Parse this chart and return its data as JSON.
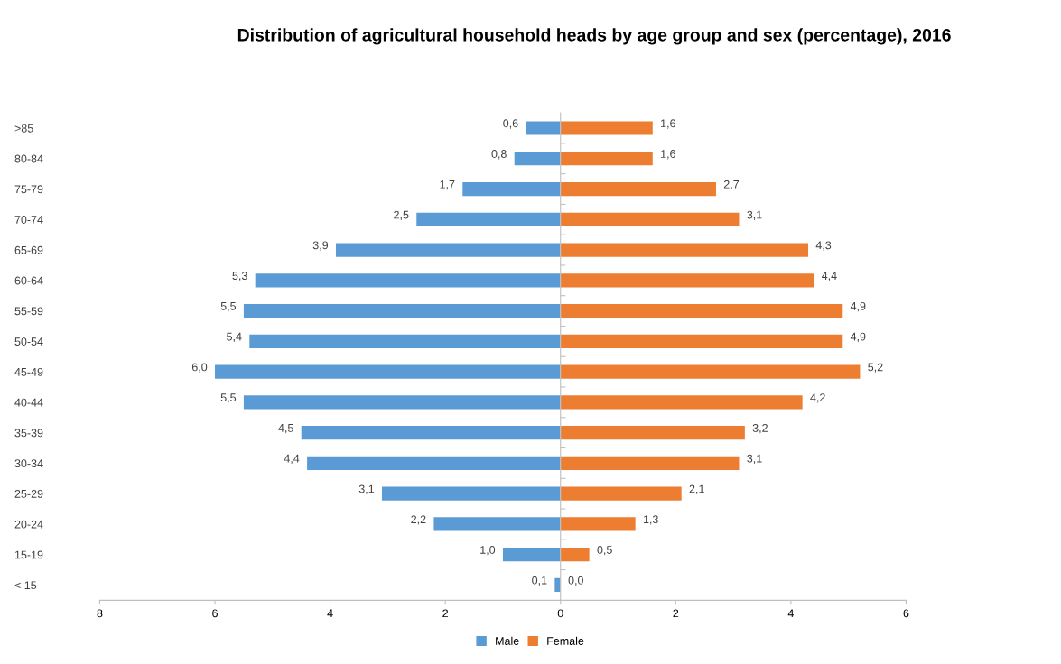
{
  "chart_data": [
    {
      "type": "bar",
      "orientation": "horizontal",
      "title": "Distribution of agricultural household heads by age group and sex (percentage), 2016",
      "categories": [
        ">85",
        "80-84",
        "75-79",
        "70-74",
        "65-69",
        "60-64",
        "55-59",
        "50-54",
        "45-49",
        "40-44",
        "35-39",
        "30-34",
        "25-29",
        "20-24",
        "15-19",
        "< 15"
      ],
      "series": [
        {
          "name": "Male",
          "color": "#5b9bd5",
          "values": [
            0.6,
            0.8,
            1.7,
            2.5,
            3.9,
            5.3,
            5.5,
            5.4,
            6.0,
            5.5,
            4.5,
            4.4,
            3.1,
            2.2,
            1.0,
            0.1
          ],
          "value_labels": [
            "0,6",
            "0,8",
            "1,7",
            "2,5",
            "3,9",
            "5,3",
            "5,5",
            "5,4",
            "6,0",
            "5,5",
            "4,5",
            "4,4",
            "3,1",
            "2,2",
            "1,0",
            "0,1"
          ]
        }
      ],
      "xlim": [
        8,
        0
      ],
      "xticks": [
        8,
        6,
        4,
        2
      ],
      "legend": "bottom"
    },
    {
      "type": "bar",
      "orientation": "horizontal",
      "categories": [
        null,
        null,
        null,
        null,
        null,
        null,
        null,
        null,
        null,
        null,
        null,
        null,
        null,
        null,
        null,
        null
      ],
      "series": [
        {
          "name": "Female",
          "color": "#ed7d31",
          "values": [
            1.6,
            1.6,
            2.7,
            3.1,
            4.3,
            4.4,
            4.9,
            4.9,
            5.2,
            4.2,
            3.2,
            3.1,
            2.1,
            1.3,
            0.5,
            0.0
          ],
          "value_labels": [
            "1,6",
            "1,6",
            "2,7",
            "3,1",
            "4,3",
            "4,4",
            "4,9",
            "4,9",
            "5,2",
            "4,2",
            "3,2",
            "3,1",
            "2,1",
            "1,3",
            "0,5",
            "0,0"
          ]
        }
      ],
      "xlim": [
        0,
        6
      ],
      "xticks": [
        0,
        2,
        4,
        6
      ],
      "tick_labels": "x",
      "legend": "bottom"
    }
  ]
}
